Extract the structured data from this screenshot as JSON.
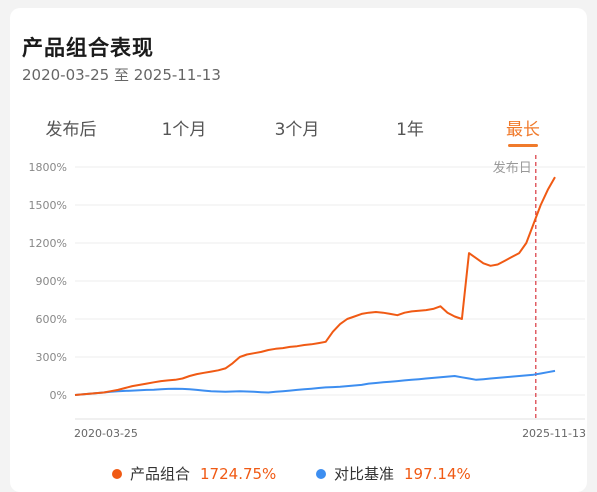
{
  "header": {
    "title": "产品组合表现",
    "date_range": "2020-03-25 至 2025-11-13"
  },
  "tabs": [
    {
      "label": "发布后",
      "active": false
    },
    {
      "label": "1个月",
      "active": false
    },
    {
      "label": "3个月",
      "active": false
    },
    {
      "label": "1年",
      "active": false
    },
    {
      "label": "最长",
      "active": true
    }
  ],
  "colors": {
    "accent": "#f07a2b",
    "portfolio": "#f05a14",
    "benchmark": "#3d8ef0",
    "publish_line": "#d9363e"
  },
  "chart_data": {
    "type": "line",
    "y_ticks": [
      "1800%",
      "1500%",
      "1200%",
      "900%",
      "600%",
      "300%",
      "0%"
    ],
    "y_tick_values": [
      1800,
      1500,
      1200,
      900,
      600,
      300,
      0
    ],
    "ylim": [
      -150,
      1850
    ],
    "x_start_label": "2020-03-25",
    "x_end_label": "2025-11-13",
    "annotation": "发布日",
    "publish_fraction": 0.96,
    "series": [
      {
        "name": "产品组合",
        "values": [
          0,
          5,
          10,
          15,
          20,
          30,
          40,
          55,
          70,
          80,
          90,
          100,
          110,
          115,
          120,
          130,
          150,
          165,
          175,
          185,
          195,
          210,
          250,
          300,
          320,
          330,
          340,
          355,
          365,
          370,
          380,
          385,
          395,
          400,
          410,
          420,
          500,
          560,
          600,
          620,
          640,
          650,
          655,
          650,
          640,
          630,
          650,
          660,
          665,
          670,
          680,
          700,
          650,
          620,
          600,
          1120,
          1080,
          1040,
          1020,
          1030,
          1060,
          1090,
          1120,
          1200,
          1350,
          1500,
          1620,
          1720
        ]
      },
      {
        "name": "对比基准",
        "values": [
          0,
          5,
          10,
          15,
          20,
          25,
          30,
          32,
          35,
          38,
          40,
          42,
          45,
          48,
          50,
          48,
          45,
          40,
          35,
          30,
          28,
          25,
          28,
          30,
          28,
          25,
          22,
          20,
          25,
          30,
          35,
          40,
          45,
          50,
          55,
          60,
          62,
          65,
          70,
          75,
          80,
          90,
          95,
          100,
          105,
          110,
          115,
          120,
          125,
          130,
          135,
          140,
          145,
          150,
          140,
          130,
          120,
          125,
          130,
          135,
          140,
          145,
          150,
          155,
          160,
          170,
          180,
          190
        ]
      }
    ],
    "legend": [
      {
        "label": "产品组合",
        "value": "1724.75%"
      },
      {
        "label": "对比基准",
        "value": "197.14%"
      }
    ]
  }
}
